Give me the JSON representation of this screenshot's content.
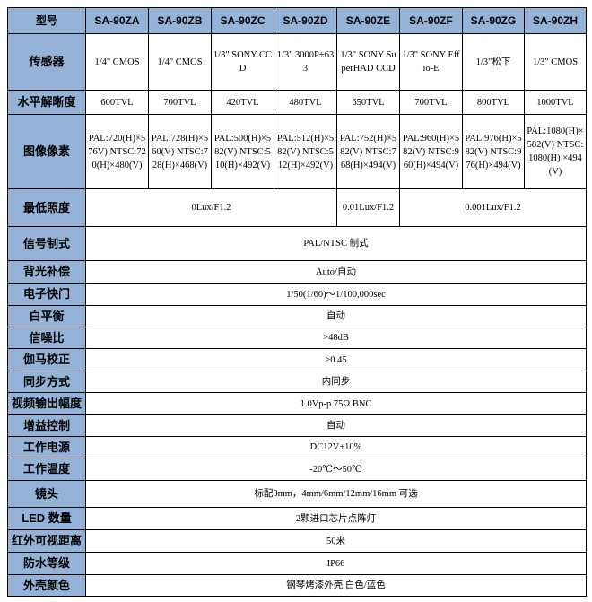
{
  "header": {
    "label": "型号",
    "models": [
      "SA-90ZA",
      "SA-90ZB",
      "SA-90ZC",
      "SA-90ZD",
      "SA-90ZE",
      "SA-90ZF",
      "SA-90ZG",
      "SA-90ZH"
    ]
  },
  "sensor": {
    "label": "传感器",
    "values": [
      "1/4\" CMOS",
      "1/4\" CMOS",
      "1/3\" SONY CCD",
      "1/3\" 3000P+633",
      "1/3\" SONY SuperHAD CCD",
      "1/3\" SONY Effio-E",
      "1/3\"松下",
      "1/3\" CMOS"
    ]
  },
  "resolution": {
    "label": "水平解晰度",
    "values": [
      "600TVL",
      "700TVL",
      "420TVL",
      "480TVL",
      "650TVL",
      "700TVL",
      "800TVL",
      "1000TVL"
    ]
  },
  "pixels": {
    "label": "图像像素",
    "values": [
      "PAL:720(H)×576V) NTSC:720(H)×480(V)",
      "PAL:728(H)×560(V) NTSC:728(H)×468(V)",
      "PAL:500(H)×582(V) NTSC:510(H)×492(V)",
      "PAL:512(H)×582(V) NTSC:512(H)×492(V)",
      "PAL:752(H)×582(V) NTSC:768(H)×494(V)",
      "PAL:960(H)×582(V) NTSC:960(H)×494(V)",
      "PAL:976(H)×582(V) NTSC:976(H)×494(V)",
      "PAL:1080(H)×582(V) NTSC:1080(H) ×494(V)"
    ]
  },
  "lux": {
    "label": "最低照度",
    "a_to_d": "0Lux/F1.2",
    "e": "0.01Lux/F1.2",
    "f_to_h": "0.001Lux/F1.2"
  },
  "specs": [
    {
      "label": "信号制式",
      "value": "PAL/NTSC 制式"
    },
    {
      "label": "背光补偿",
      "value": "Auto/自动"
    },
    {
      "label": "电子快门",
      "value": "1/50(1/60)～1/100,000sec"
    },
    {
      "label": "白平衡",
      "value": "自动"
    },
    {
      "label": "信噪比",
      "value": ">48dB"
    },
    {
      "label": "伽马校正",
      "value": ">0.45"
    },
    {
      "label": "同步方式",
      "value": "内同步"
    },
    {
      "label": "视频输出幅度",
      "value": "1.0Vp-p 75Ω BNC"
    },
    {
      "label": "增益控制",
      "value": "自动"
    },
    {
      "label": "工作电源",
      "value": "DC12V±10%"
    },
    {
      "label": "工作温度",
      "value": "-20℃～50℃"
    },
    {
      "label": "镜头",
      "value": "标配8mm，4mm/6mm/12mm/16mm 可选"
    },
    {
      "label": "LED 数量",
      "value": "2颗进口芯片点阵灯"
    },
    {
      "label": "红外可视距离",
      "value": "50米"
    },
    {
      "label": "防水等级",
      "value": "IP66"
    },
    {
      "label": "外壳颜色",
      "value": "钢琴烤漆外壳  白色/蓝色"
    }
  ]
}
